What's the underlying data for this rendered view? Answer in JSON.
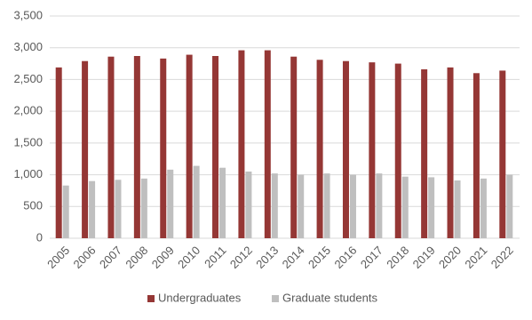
{
  "chart_data": {
    "type": "bar",
    "categories": [
      "2005",
      "2006",
      "2007",
      "2008",
      "2009",
      "2010",
      "2011",
      "2012",
      "2013",
      "2014",
      "2015",
      "2016",
      "2017",
      "2018",
      "2019",
      "2020",
      "2021",
      "2022"
    ],
    "series": [
      {
        "name": "Undergraduates",
        "color": "#953735",
        "values": [
          2690,
          2790,
          2860,
          2870,
          2830,
          2890,
          2870,
          2960,
          2960,
          2860,
          2810,
          2790,
          2770,
          2750,
          2660,
          2690,
          2600,
          2640
        ]
      },
      {
        "name": "Graduate students",
        "color": "#bfbfbf",
        "values": [
          830,
          900,
          920,
          940,
          1080,
          1140,
          1110,
          1050,
          1020,
          1000,
          1020,
          1000,
          1020,
          970,
          960,
          910,
          940,
          1000
        ]
      }
    ],
    "ylim": [
      0,
      3500
    ],
    "yticks": [
      0,
      500,
      {
        "value": 1000,
        "label": "1,000"
      },
      {
        "value": 1500,
        "label": "1,500"
      },
      {
        "value": 2000,
        "label": "2,000"
      },
      {
        "value": 2500,
        "label": "2,500"
      },
      {
        "value": 3000,
        "label": "3,000"
      },
      {
        "value": 3500,
        "label": "3,500"
      }
    ],
    "grid": true,
    "legend": "bottom"
  }
}
